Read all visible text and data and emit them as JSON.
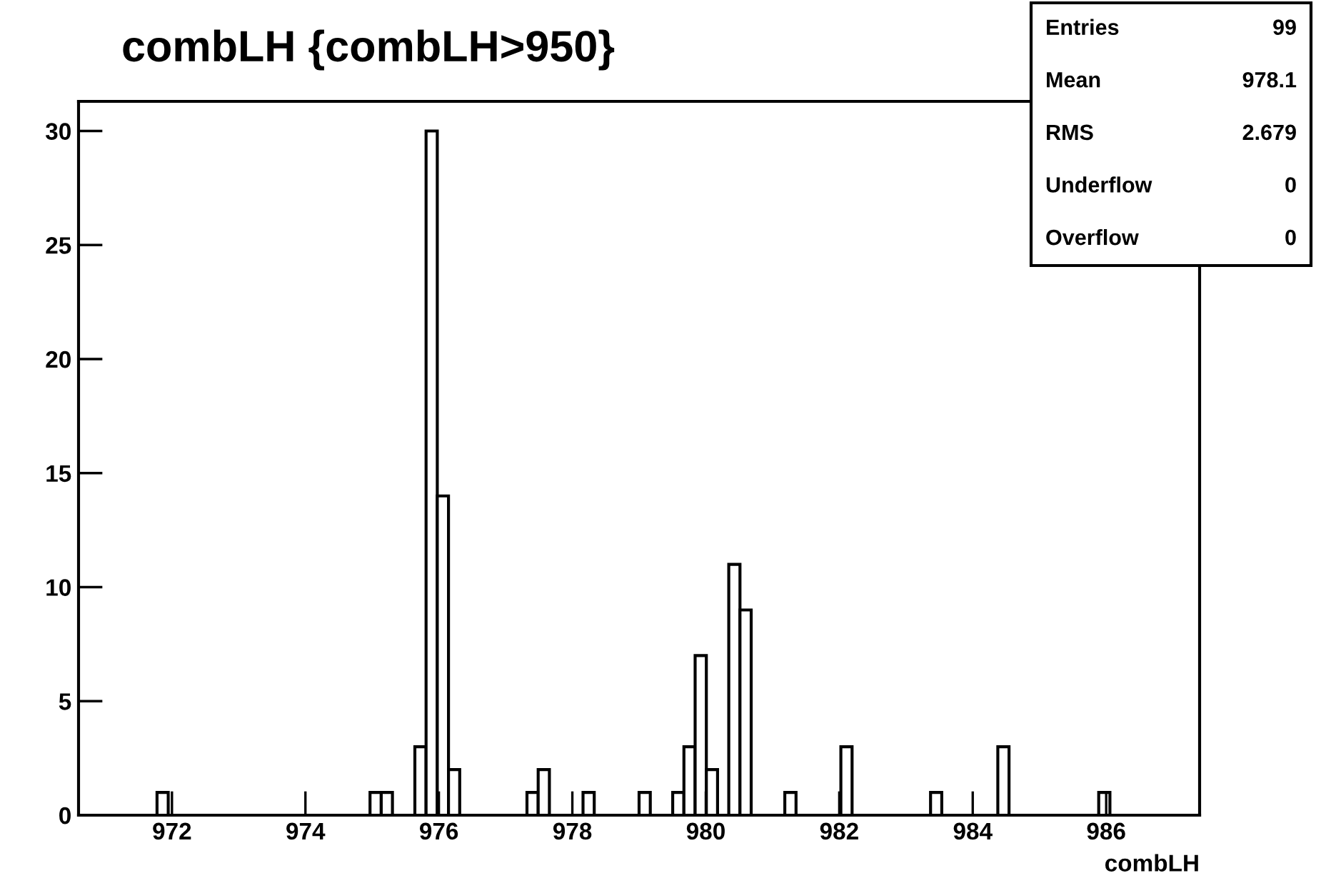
{
  "chart_data": {
    "type": "histogram",
    "title": "combLH {combLH>950}",
    "xlabel": "combLH",
    "bins": [
      970.6,
      970.768,
      970.936,
      971.104,
      971.272,
      971.44,
      971.608,
      971.776,
      971.944,
      972.112,
      972.28,
      972.448,
      972.616,
      972.784,
      972.952,
      973.12,
      973.288,
      973.456,
      973.624,
      973.792,
      973.96,
      974.128,
      974.296,
      974.464,
      974.632,
      974.8,
      974.968,
      975.136,
      975.304,
      975.472,
      975.64,
      975.808,
      975.976,
      976.144,
      976.312,
      976.48,
      976.648,
      976.816,
      976.984,
      977.152,
      977.32,
      977.488,
      977.656,
      977.824,
      977.992,
      978.16,
      978.328,
      978.496,
      978.664,
      978.832,
      979.0,
      979.168,
      979.336,
      979.504,
      979.672,
      979.84,
      980.008,
      980.176,
      980.344,
      980.512,
      980.68,
      980.848,
      981.016,
      981.184,
      981.352,
      981.52,
      981.688,
      981.856,
      982.024,
      982.192,
      982.36,
      982.528,
      982.696,
      982.864,
      983.032,
      983.2,
      983.368,
      983.536,
      983.704,
      983.872,
      984.04,
      984.208,
      984.376,
      984.544,
      984.712,
      984.88,
      985.048,
      985.216,
      985.384,
      985.552,
      985.72,
      985.888,
      986.056,
      986.224,
      986.392,
      986.56,
      986.728,
      986.896,
      987.064,
      987.232,
      987.4
    ],
    "values": [
      0,
      0,
      0,
      0,
      0,
      0,
      0,
      1,
      0,
      0,
      0,
      0,
      0,
      0,
      0,
      0,
      0,
      0,
      0,
      0,
      0,
      0,
      0,
      0,
      0,
      0,
      1,
      1,
      0,
      0,
      3,
      30,
      14,
      2,
      0,
      0,
      0,
      0,
      0,
      0,
      1,
      2,
      0,
      0,
      0,
      1,
      0,
      0,
      0,
      0,
      1,
      0,
      0,
      1,
      3,
      7,
      2,
      0,
      11,
      9,
      0,
      0,
      0,
      1,
      0,
      0,
      0,
      0,
      3,
      0,
      0,
      0,
      0,
      0,
      0,
      0,
      1,
      0,
      0,
      0,
      0,
      0,
      3,
      0,
      0,
      0,
      0,
      0,
      0,
      0,
      0,
      1,
      0,
      0,
      0,
      0,
      0,
      0,
      0,
      0
    ],
    "color": "#000000",
    "xlim": [
      970.6,
      987.4
    ],
    "xticks": [
      972,
      974,
      976,
      978,
      980,
      982,
      984,
      986
    ],
    "ylim": [
      0,
      31.3
    ],
    "yticks": [
      0,
      5,
      10,
      15,
      20,
      25,
      30
    ],
    "grid": false,
    "legend": false,
    "annotations": [
      "Entries",
      "99",
      "Mean",
      "978.1",
      "RMS",
      "2.679",
      "Underflow",
      "0",
      "Overflow",
      "0"
    ]
  }
}
